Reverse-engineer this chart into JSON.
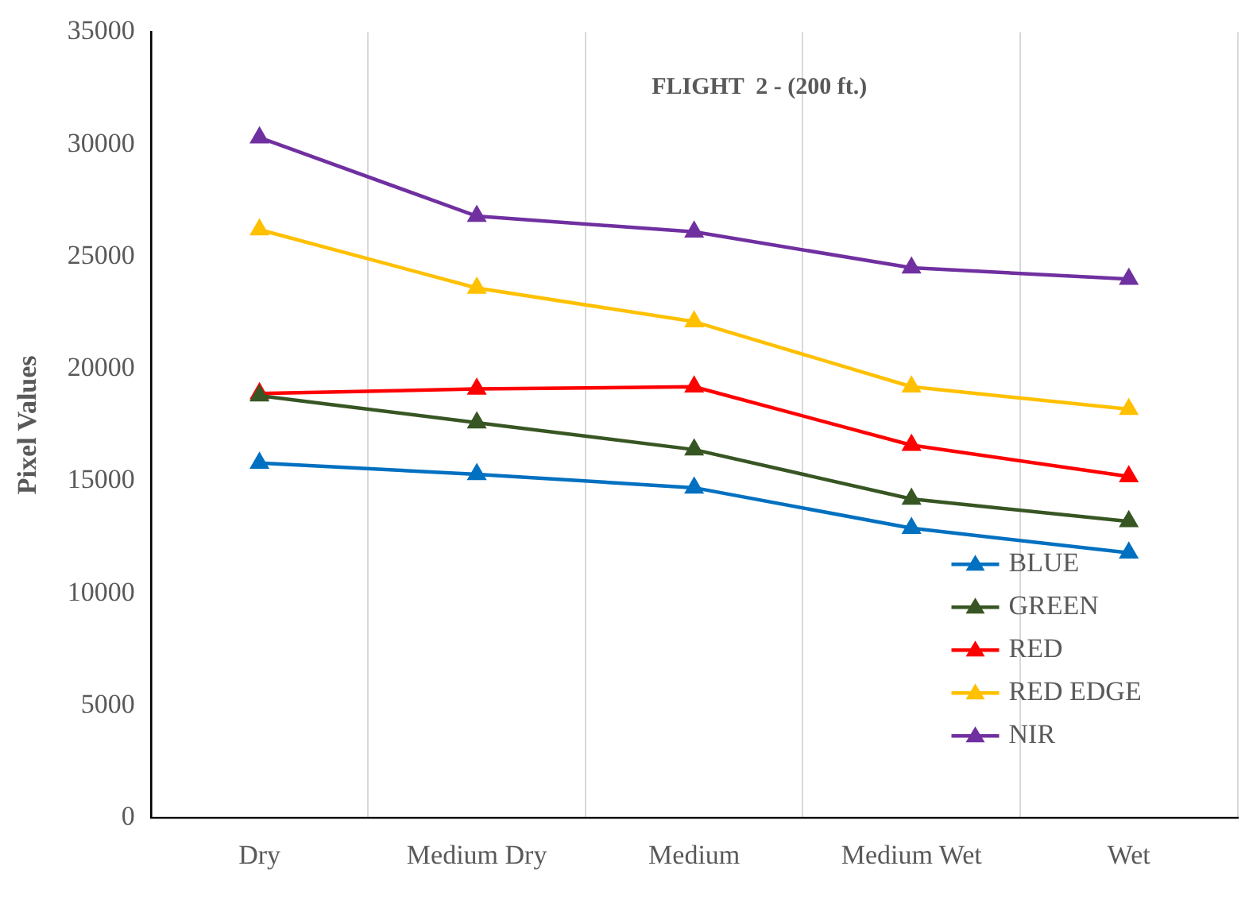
{
  "chart_data": {
    "type": "line",
    "title": "FLIGHT  2 - (200 ft.)",
    "ylabel": "Pixel Values",
    "categories": [
      "Dry",
      "Medium Dry",
      "Medium",
      "Medium Wet",
      "Wet"
    ],
    "series": [
      {
        "name": "BLUE",
        "color": "#0070c0",
        "values": [
          15800,
          15300,
          14700,
          12900,
          11800
        ]
      },
      {
        "name": "GREEN",
        "color": "#375623",
        "values": [
          18800,
          17600,
          16400,
          14200,
          13200
        ]
      },
      {
        "name": "RED",
        "color": "#ff0000",
        "values": [
          18900,
          19100,
          19200,
          16600,
          15200
        ]
      },
      {
        "name": "RED EDGE",
        "color": "#ffc000",
        "values": [
          26200,
          23600,
          22100,
          19200,
          18200
        ]
      },
      {
        "name": "NIR",
        "color": "#7030a0",
        "values": [
          30300,
          26800,
          26100,
          24500,
          24000
        ]
      }
    ],
    "ylim": [
      0,
      35000
    ],
    "yticks": [
      0,
      5000,
      10000,
      15000,
      20000,
      25000,
      30000,
      35000
    ],
    "grid": "x",
    "legend": "bottom right",
    "marker": "triangle",
    "line_style": "solid"
  }
}
